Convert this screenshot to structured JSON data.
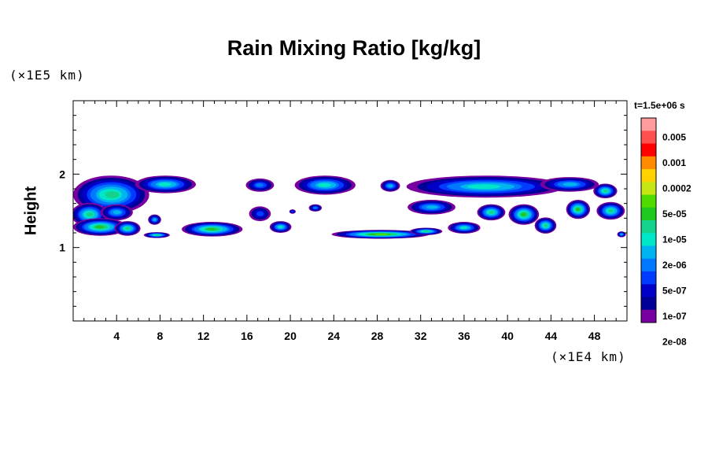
{
  "chart_data": {
    "type": "heatmap",
    "title": "Rain Mixing Ratio [kg/kg]",
    "ylabel": "Height",
    "xlabel": "",
    "x_unit_label": "(×1E4 km)",
    "y_unit_label": "(×1E5 km)",
    "time_label": "t=1.5e+06 s",
    "xlim": [
      0,
      51
    ],
    "ylim": [
      0,
      3
    ],
    "x_ticks": [
      4,
      8,
      12,
      16,
      20,
      24,
      28,
      32,
      36,
      40,
      44,
      48
    ],
    "y_ticks": [
      1,
      2
    ],
    "colorbar": {
      "labels": [
        "0.005",
        "0.001",
        "0.0002",
        "5e-05",
        "1e-05",
        "2e-06",
        "5e-07",
        "1e-07",
        "2e-08"
      ],
      "colors": [
        "#ff9c9c",
        "#ff5050",
        "#ff0000",
        "#ff8c00",
        "#ffd200",
        "#c8e614",
        "#50dc00",
        "#1ec81e",
        "#14d28c",
        "#00e6c8",
        "#00b4f0",
        "#0078ff",
        "#003cff",
        "#0000c8",
        "#000096",
        "#7800a0"
      ]
    },
    "regions": [
      {
        "x": 3.5,
        "y": 1.72,
        "rx": 3.5,
        "ry": 0.26,
        "level": 8
      },
      {
        "x": 8.5,
        "y": 1.86,
        "rx": 2.8,
        "ry": 0.12,
        "level": 9
      },
      {
        "x": 1.5,
        "y": 1.45,
        "rx": 1.7,
        "ry": 0.16,
        "level": 8
      },
      {
        "x": 4.0,
        "y": 1.48,
        "rx": 1.5,
        "ry": 0.11,
        "level": 10
      },
      {
        "x": 2.5,
        "y": 1.28,
        "rx": 2.5,
        "ry": 0.12,
        "level": 7
      },
      {
        "x": 5.0,
        "y": 1.26,
        "rx": 1.2,
        "ry": 0.1,
        "level": 8
      },
      {
        "x": 7.5,
        "y": 1.38,
        "rx": 0.6,
        "ry": 0.07,
        "level": 10
      },
      {
        "x": 7.7,
        "y": 1.17,
        "rx": 1.2,
        "ry": 0.04,
        "level": 8
      },
      {
        "x": 12.8,
        "y": 1.25,
        "rx": 2.8,
        "ry": 0.1,
        "level": 7
      },
      {
        "x": 17.2,
        "y": 1.85,
        "rx": 1.3,
        "ry": 0.09,
        "level": 11
      },
      {
        "x": 17.2,
        "y": 1.46,
        "rx": 1.0,
        "ry": 0.1,
        "level": 12
      },
      {
        "x": 19.1,
        "y": 1.28,
        "rx": 1.0,
        "ry": 0.08,
        "level": 9
      },
      {
        "x": 22.3,
        "y": 1.54,
        "rx": 0.6,
        "ry": 0.05,
        "level": 11
      },
      {
        "x": 20.2,
        "y": 1.49,
        "rx": 0.3,
        "ry": 0.03,
        "level": 12
      },
      {
        "x": 23.2,
        "y": 1.85,
        "rx": 2.8,
        "ry": 0.13,
        "level": 9
      },
      {
        "x": 28.3,
        "y": 1.18,
        "rx": 4.5,
        "ry": 0.06,
        "level": 6
      },
      {
        "x": 32.5,
        "y": 1.22,
        "rx": 1.5,
        "ry": 0.05,
        "level": 8
      },
      {
        "x": 29.2,
        "y": 1.84,
        "rx": 0.9,
        "ry": 0.08,
        "level": 10
      },
      {
        "x": 38.0,
        "y": 1.83,
        "rx": 7.3,
        "ry": 0.15,
        "level": 9
      },
      {
        "x": 45.7,
        "y": 1.86,
        "rx": 2.7,
        "ry": 0.1,
        "level": 10
      },
      {
        "x": 33.0,
        "y": 1.55,
        "rx": 2.2,
        "ry": 0.1,
        "level": 10
      },
      {
        "x": 36.0,
        "y": 1.27,
        "rx": 1.5,
        "ry": 0.08,
        "level": 9
      },
      {
        "x": 38.5,
        "y": 1.48,
        "rx": 1.3,
        "ry": 0.11,
        "level": 8
      },
      {
        "x": 41.5,
        "y": 1.45,
        "rx": 1.4,
        "ry": 0.14,
        "level": 7
      },
      {
        "x": 43.5,
        "y": 1.3,
        "rx": 1.0,
        "ry": 0.11,
        "level": 8
      },
      {
        "x": 46.5,
        "y": 1.52,
        "rx": 1.1,
        "ry": 0.13,
        "level": 7
      },
      {
        "x": 49.0,
        "y": 1.77,
        "rx": 1.1,
        "ry": 0.1,
        "level": 8
      },
      {
        "x": 49.5,
        "y": 1.5,
        "rx": 1.3,
        "ry": 0.12,
        "level": 8
      },
      {
        "x": 50.5,
        "y": 1.18,
        "rx": 0.4,
        "ry": 0.04,
        "level": 10
      }
    ]
  }
}
